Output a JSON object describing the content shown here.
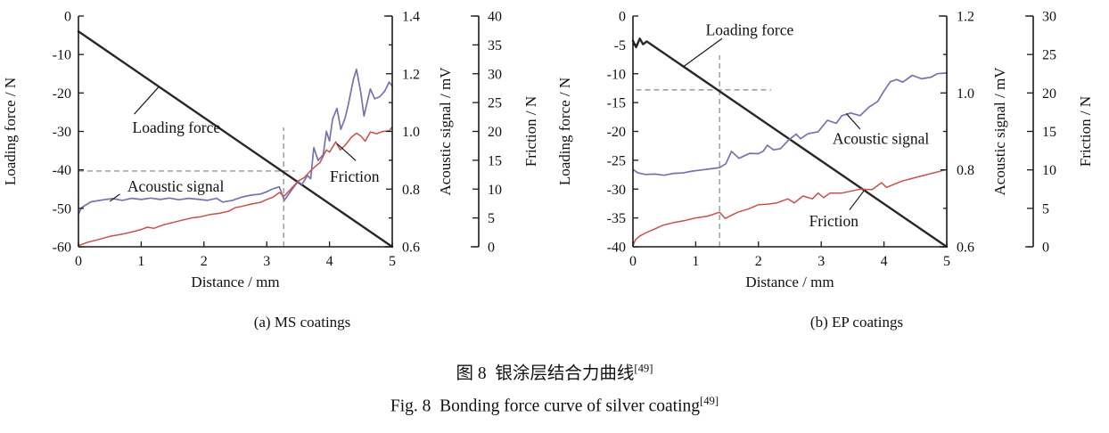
{
  "figure": {
    "caption_zh": "图 8  银涂层结合力曲线",
    "caption_en": "Fig. 8  Bonding force curve of silver coating",
    "reference": "[49]"
  },
  "chart_data": [
    {
      "type": "line",
      "panel": "a",
      "subcaption": "(a) MS coatings",
      "xlabel": "Distance / mm",
      "xlim": [
        0,
        5
      ],
      "xticks": [
        0,
        1,
        2,
        3,
        4,
        5
      ],
      "xtick_labels": [
        "0",
        "1",
        "2",
        "3",
        "4",
        "5"
      ],
      "grid": false,
      "axes": {
        "loading": {
          "label": "Loading force / N",
          "lim": [
            -60,
            0
          ],
          "ticks": [
            0,
            -10,
            -20,
            -30,
            -40,
            -50,
            -60
          ],
          "tick_labels": [
            "0",
            "-10",
            "-20",
            "-30",
            "-40",
            "-50",
            "-60"
          ]
        },
        "acoustic": {
          "label": "Acoustic signal / mV",
          "lim": [
            0.6,
            1.4
          ],
          "ticks": [
            0.6,
            0.8,
            1.0,
            1.2,
            1.4
          ],
          "tick_labels": [
            "0.6",
            "0.8",
            "1.0",
            "1.2",
            "1.4"
          ],
          "minor_ticks": [
            0.7,
            0.9,
            1.1,
            1.3
          ]
        },
        "friction": {
          "label": "Friction / N",
          "lim": [
            0,
            40
          ],
          "ticks": [
            0,
            5,
            10,
            15,
            20,
            25,
            30,
            35,
            40
          ],
          "tick_labels": [
            "0",
            "5",
            "10",
            "15",
            "20",
            "25",
            "30",
            "35",
            "40"
          ]
        }
      },
      "series": [
        {
          "name": "Loading force",
          "axis": "loading",
          "color": "#282828",
          "width": 2.4,
          "points": [
            [
              0,
              -4
            ],
            [
              5,
              -60
            ]
          ]
        },
        {
          "name": "Acoustic signal",
          "axis": "acoustic",
          "color": "#7672b0",
          "width": 1.7,
          "points": [
            [
              0,
              0.713
            ],
            [
              0.05,
              0.736
            ],
            [
              0.2,
              0.756
            ],
            [
              0.4,
              0.763
            ],
            [
              0.55,
              0.767
            ],
            [
              0.7,
              0.761
            ],
            [
              0.85,
              0.768
            ],
            [
              1.0,
              0.764
            ],
            [
              1.15,
              0.769
            ],
            [
              1.3,
              0.764
            ],
            [
              1.45,
              0.769
            ],
            [
              1.6,
              0.763
            ],
            [
              1.75,
              0.768
            ],
            [
              1.9,
              0.765
            ],
            [
              2.05,
              0.761
            ],
            [
              2.2,
              0.768
            ],
            [
              2.3,
              0.755
            ],
            [
              2.45,
              0.761
            ],
            [
              2.6,
              0.772
            ],
            [
              2.75,
              0.779
            ],
            [
              2.9,
              0.783
            ],
            [
              3.0,
              0.791
            ],
            [
              3.1,
              0.801
            ],
            [
              3.2,
              0.808
            ],
            [
              3.28,
              0.761
            ],
            [
              3.38,
              0.792
            ],
            [
              3.5,
              0.827
            ],
            [
              3.56,
              0.816
            ],
            [
              3.65,
              0.847
            ],
            [
              3.7,
              0.836
            ],
            [
              3.75,
              0.944
            ],
            [
              3.82,
              0.899
            ],
            [
              3.9,
              0.92
            ],
            [
              3.95,
              1.0
            ],
            [
              4.0,
              0.967
            ],
            [
              4.05,
              1.043
            ],
            [
              4.12,
              1.08
            ],
            [
              4.18,
              1.007
            ],
            [
              4.25,
              1.047
            ],
            [
              4.3,
              1.093
            ],
            [
              4.38,
              1.18
            ],
            [
              4.43,
              1.215
            ],
            [
              4.5,
              1.133
            ],
            [
              4.55,
              1.053
            ],
            [
              4.6,
              1.1
            ],
            [
              4.65,
              1.147
            ],
            [
              4.72,
              1.113
            ],
            [
              4.8,
              1.12
            ],
            [
              4.88,
              1.14
            ],
            [
              4.95,
              1.171
            ],
            [
              5.0,
              1.157
            ]
          ]
        },
        {
          "name": "Friction",
          "axis": "friction",
          "color": "#c8504b",
          "width": 1.5,
          "points": [
            [
              0,
              0.2
            ],
            [
              0.15,
              0.8
            ],
            [
              0.3,
              1.2
            ],
            [
              0.5,
              1.8
            ],
            [
              0.7,
              2.2
            ],
            [
              0.9,
              2.7
            ],
            [
              1.0,
              3.0
            ],
            [
              1.1,
              3.4
            ],
            [
              1.2,
              3.2
            ],
            [
              1.35,
              3.8
            ],
            [
              1.5,
              4.2
            ],
            [
              1.65,
              4.6
            ],
            [
              1.8,
              5.0
            ],
            [
              1.95,
              5.2
            ],
            [
              2.1,
              5.6
            ],
            [
              2.25,
              5.8
            ],
            [
              2.4,
              6.2
            ],
            [
              2.5,
              6.8
            ],
            [
              2.6,
              7.0
            ],
            [
              2.75,
              7.4
            ],
            [
              2.9,
              7.7
            ],
            [
              3.0,
              8.2
            ],
            [
              3.1,
              8.6
            ],
            [
              3.2,
              9.4
            ],
            [
              3.28,
              8.8
            ],
            [
              3.4,
              10.2
            ],
            [
              3.5,
              11.4
            ],
            [
              3.6,
              12.0
            ],
            [
              3.7,
              13.2
            ],
            [
              3.78,
              14.0
            ],
            [
              3.85,
              14.6
            ],
            [
              3.95,
              16.8
            ],
            [
              4.0,
              16.4
            ],
            [
              4.1,
              18.2
            ],
            [
              4.17,
              16.8
            ],
            [
              4.25,
              17.6
            ],
            [
              4.35,
              19.0
            ],
            [
              4.43,
              19.7
            ],
            [
              4.5,
              19.2
            ],
            [
              4.57,
              18.3
            ],
            [
              4.65,
              19.9
            ],
            [
              4.75,
              19.6
            ],
            [
              4.85,
              20.0
            ],
            [
              4.95,
              20.1
            ],
            [
              5.0,
              20.8
            ]
          ]
        }
      ],
      "crosshair": {
        "color": "#8f9e8f",
        "x": 3.27,
        "x_span": [
          -60,
          -29
        ],
        "y": -40.3,
        "y_span": [
          0,
          3.45
        ]
      },
      "annotations": [
        {
          "text": "Loading force",
          "x": 1.56,
          "y": -29.0,
          "leader": [
            [
              0.89,
              -25.5
            ],
            [
              1.28,
              -18.4
            ]
          ]
        },
        {
          "text": "Acoustic signal",
          "x": 1.55,
          "y": -44.2,
          "leader": [
            [
              0.66,
              -46.3
            ],
            [
              0.5,
              -48.2
            ]
          ]
        },
        {
          "text": "Friction",
          "x": 4.4,
          "y": -41.7,
          "leader": [
            [
              4.42,
              -37.6
            ],
            [
              4.12,
              -33.2
            ]
          ]
        }
      ]
    },
    {
      "type": "line",
      "panel": "b",
      "subcaption": "(b) EP coatings",
      "xlabel": "Distance / mm",
      "xlim": [
        0,
        5
      ],
      "xticks": [
        0,
        1,
        2,
        3,
        4,
        5
      ],
      "xtick_labels": [
        "0",
        "1",
        "2",
        "3",
        "4",
        "5"
      ],
      "grid": false,
      "axes": {
        "loading": {
          "label": "Loading force / N",
          "lim": [
            -40,
            0
          ],
          "ticks": [
            0,
            -5,
            -10,
            -15,
            -20,
            -25,
            -30,
            -35,
            -40
          ],
          "tick_labels": [
            "0",
            "-5",
            "-10",
            "-15",
            "-20",
            "-25",
            "-30",
            "-35",
            "-40"
          ]
        },
        "acoustic": {
          "label": "Acoustic signal / mV",
          "lim": [
            0.6,
            1.2
          ],
          "ticks": [
            0.6,
            0.8,
            1.0,
            1.2
          ],
          "tick_labels": [
            "0.6",
            "0.8",
            "1.0",
            "1.2"
          ],
          "minor_ticks": [
            0.7,
            0.9,
            1.1
          ]
        },
        "friction": {
          "label": "Friction / N",
          "lim": [
            0,
            30
          ],
          "ticks": [
            0,
            5,
            10,
            15,
            20,
            25,
            30
          ],
          "tick_labels": [
            "0",
            "5",
            "10",
            "15",
            "20",
            "25",
            "30"
          ]
        }
      },
      "series": [
        {
          "name": "Loading force",
          "axis": "loading",
          "color": "#282828",
          "width": 2.4,
          "points": [
            [
              0,
              -4.3
            ],
            [
              0.05,
              -5.4
            ],
            [
              0.11,
              -3.9
            ],
            [
              0.16,
              -4.9
            ],
            [
              0.22,
              -4.4
            ],
            [
              5,
              -40
            ]
          ]
        },
        {
          "name": "Acoustic signal",
          "axis": "acoustic",
          "color": "#7672b0",
          "width": 1.7,
          "points": [
            [
              0,
              0.801
            ],
            [
              0.08,
              0.792
            ],
            [
              0.2,
              0.788
            ],
            [
              0.35,
              0.789
            ],
            [
              0.5,
              0.786
            ],
            [
              0.65,
              0.791
            ],
            [
              0.8,
              0.792
            ],
            [
              0.95,
              0.797
            ],
            [
              1.1,
              0.8
            ],
            [
              1.25,
              0.803
            ],
            [
              1.38,
              0.806
            ],
            [
              1.48,
              0.816
            ],
            [
              1.57,
              0.848
            ],
            [
              1.69,
              0.83
            ],
            [
              1.78,
              0.837
            ],
            [
              1.86,
              0.843
            ],
            [
              2.0,
              0.842
            ],
            [
              2.08,
              0.849
            ],
            [
              2.14,
              0.864
            ],
            [
              2.24,
              0.852
            ],
            [
              2.35,
              0.855
            ],
            [
              2.47,
              0.876
            ],
            [
              2.6,
              0.893
            ],
            [
              2.67,
              0.881
            ],
            [
              2.79,
              0.894
            ],
            [
              2.95,
              0.899
            ],
            [
              3.1,
              0.929
            ],
            [
              3.24,
              0.921
            ],
            [
              3.33,
              0.941
            ],
            [
              3.47,
              0.948
            ],
            [
              3.62,
              0.941
            ],
            [
              3.76,
              0.963
            ],
            [
              3.9,
              0.978
            ],
            [
              4.0,
              1.005
            ],
            [
              4.1,
              1.029
            ],
            [
              4.2,
              1.035
            ],
            [
              4.3,
              1.028
            ],
            [
              4.45,
              1.046
            ],
            [
              4.6,
              1.037
            ],
            [
              4.75,
              1.041
            ],
            [
              4.85,
              1.05
            ],
            [
              5.0,
              1.052
            ]
          ]
        },
        {
          "name": "Friction",
          "axis": "friction",
          "color": "#c8504b",
          "width": 1.5,
          "points": [
            [
              0,
              0.15
            ],
            [
              0.04,
              0.9
            ],
            [
              0.1,
              1.35
            ],
            [
              0.2,
              1.8
            ],
            [
              0.35,
              2.33
            ],
            [
              0.47,
              2.78
            ],
            [
              0.65,
              3.15
            ],
            [
              0.81,
              3.38
            ],
            [
              1.0,
              3.75
            ],
            [
              1.19,
              3.98
            ],
            [
              1.38,
              4.5
            ],
            [
              1.47,
              3.68
            ],
            [
              1.58,
              4.13
            ],
            [
              1.67,
              4.5
            ],
            [
              1.85,
              4.95
            ],
            [
              2.0,
              5.48
            ],
            [
              2.15,
              5.55
            ],
            [
              2.29,
              5.7
            ],
            [
              2.47,
              6.23
            ],
            [
              2.57,
              5.7
            ],
            [
              2.71,
              6.6
            ],
            [
              2.86,
              6.23
            ],
            [
              2.95,
              6.98
            ],
            [
              3.04,
              6.38
            ],
            [
              3.14,
              6.98
            ],
            [
              3.33,
              6.98
            ],
            [
              3.62,
              7.5
            ],
            [
              3.81,
              7.43
            ],
            [
              3.96,
              8.33
            ],
            [
              4.04,
              7.73
            ],
            [
              4.29,
              8.55
            ],
            [
              4.57,
              9.15
            ],
            [
              4.86,
              9.75
            ],
            [
              5.0,
              10.05
            ]
          ]
        }
      ],
      "crosshair": {
        "color": "#8f9e8f",
        "x": 1.38,
        "x_span": [
          -40,
          -6.8
        ],
        "y": -12.8,
        "y_span": [
          0.05,
          2.2
        ]
      },
      "annotations": [
        {
          "text": "Loading force",
          "x": 1.86,
          "y": -2.4,
          "leader": [
            [
              1.42,
              -3.9
            ],
            [
              0.8,
              -8.8
            ]
          ]
        },
        {
          "text": "Acoustic signal",
          "x": 3.95,
          "y": -21.2,
          "leader": [
            [
              3.62,
              -19.6
            ],
            [
              3.4,
              -16.9
            ]
          ]
        },
        {
          "text": "Friction",
          "x": 3.2,
          "y": -35.5,
          "leader": [
            [
              3.45,
              -33.6
            ],
            [
              3.68,
              -30.3
            ]
          ]
        }
      ]
    }
  ]
}
